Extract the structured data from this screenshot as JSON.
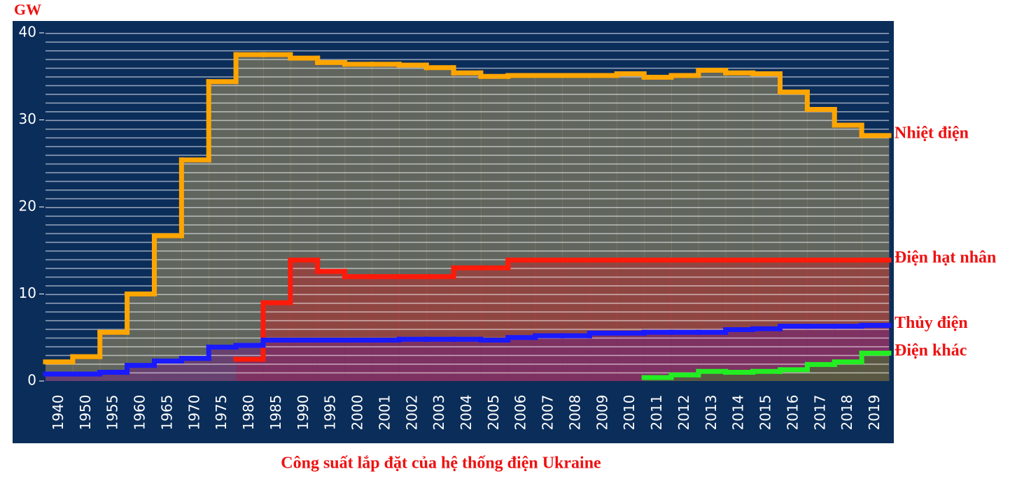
{
  "chart_data": {
    "type": "step",
    "title": "Công suất lắp đặt của hệ thống điện Ukraine",
    "y_label": "GW",
    "categories": [
      "1940",
      "1950",
      "1955",
      "1960",
      "1965",
      "1970",
      "1975",
      "1980",
      "1985",
      "1990",
      "1995",
      "2000",
      "2001",
      "2002",
      "2003",
      "2004",
      "2005",
      "2006",
      "2007",
      "2008",
      "2009",
      "2010",
      "2011",
      "2012",
      "2013",
      "2014",
      "2015",
      "2016",
      "2017",
      "2018",
      "2019"
    ],
    "ylim": [
      0,
      40
    ],
    "yticks": [
      0,
      10,
      20,
      30,
      40
    ],
    "series": [
      {
        "name": "Nhiệt điện",
        "color": "#ffa500",
        "fill": "rgba(200,170,100,0.45)",
        "values": [
          2.2,
          2.8,
          5.6,
          10,
          16.7,
          25.4,
          34.4,
          37.5,
          37.5,
          37.1,
          36.6,
          36.4,
          36.4,
          36.3,
          36.0,
          35.4,
          35.0,
          35.1,
          35.1,
          35.1,
          35.1,
          35.3,
          34.9,
          35.1,
          35.7,
          35.4,
          35.3,
          33.2,
          31.2,
          29.4,
          28.2
        ]
      },
      {
        "name": "Điện hạt nhân",
        "color": "#ff1a0a",
        "fill": "rgba(190,40,40,0.5)",
        "values": [
          null,
          null,
          null,
          null,
          null,
          null,
          null,
          2.5,
          9.0,
          13.9,
          12.6,
          12.0,
          12.0,
          12.0,
          12.0,
          13.0,
          13.0,
          13.9,
          13.9,
          13.9,
          13.9,
          13.9,
          13.9,
          13.9,
          13.9,
          13.9,
          13.9,
          13.9,
          13.9,
          13.9,
          13.9
        ]
      },
      {
        "name": "Thủy điện",
        "color": "#1a1aff",
        "fill": "rgba(110,30,130,0.5)",
        "values": [
          0.8,
          0.8,
          1.0,
          1.8,
          2.3,
          2.6,
          3.9,
          4.1,
          4.7,
          4.7,
          4.7,
          4.7,
          4.7,
          4.8,
          4.8,
          4.8,
          4.7,
          5.0,
          5.2,
          5.2,
          5.5,
          5.5,
          5.6,
          5.6,
          5.6,
          5.9,
          6.0,
          6.3,
          6.3,
          6.3,
          6.4
        ]
      },
      {
        "name": "Điện khác",
        "color": "#22ee22",
        "fill": "rgba(60,120,40,0.55)",
        "values": [
          null,
          null,
          null,
          null,
          null,
          null,
          null,
          null,
          null,
          null,
          null,
          null,
          null,
          null,
          null,
          null,
          null,
          null,
          null,
          null,
          null,
          null,
          0.4,
          0.7,
          1.1,
          1.0,
          1.1,
          1.3,
          1.9,
          2.2,
          3.2
        ]
      }
    ]
  }
}
